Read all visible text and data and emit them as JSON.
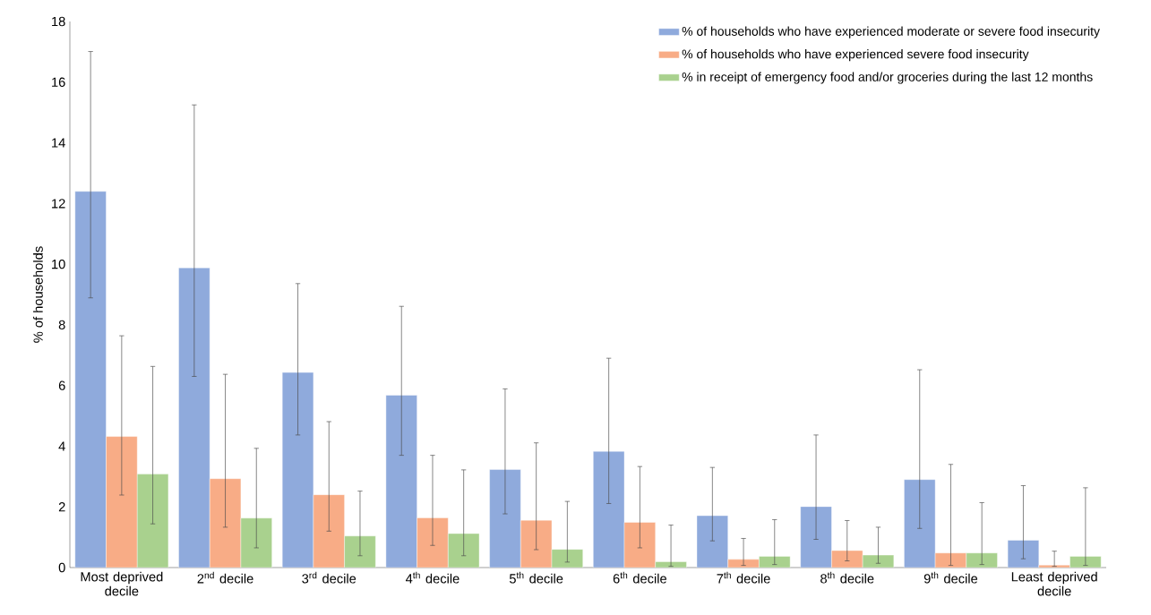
{
  "chart_data": {
    "type": "bar",
    "ylabel": "% of households",
    "categories": [
      "Most deprived decile",
      "2$^{nd}$ decile",
      "3$^{rd}$ decile",
      "4$^{th}$ decile",
      "5$^{th}$ decile",
      "6$^{th}$ decile",
      "7$^{th}$ decile",
      "8$^{th}$ decile",
      "9$^{th}$ decile",
      "Least deprived decile"
    ],
    "series": [
      {
        "name": "% of households who have experienced moderate or severe food insecurity",
        "color": "#8faadc",
        "values": [
          12.4,
          9.88,
          6.43,
          5.68,
          3.23,
          3.83,
          1.71,
          2.01,
          2.9,
          0.9
        ],
        "errors": [
          [
            8.89,
            17.01
          ],
          [
            6.3,
            15.25
          ],
          [
            4.37,
            9.36
          ],
          [
            3.7,
            8.61
          ],
          [
            1.77,
            5.89
          ],
          [
            2.11,
            6.9
          ],
          [
            0.88,
            3.3
          ],
          [
            0.93,
            4.37
          ],
          [
            1.29,
            6.52
          ],
          [
            0.29,
            2.7
          ]
        ]
      },
      {
        "name": "% of households who have experienced severe food insecurity",
        "color": "#f8ac86",
        "values": [
          4.32,
          2.93,
          2.4,
          1.64,
          1.56,
          1.49,
          0.27,
          0.56,
          0.48,
          0.08
        ],
        "errors": [
          [
            2.39,
            7.64
          ],
          [
            1.33,
            6.37
          ],
          [
            1.2,
            4.81
          ],
          [
            0.73,
            3.7
          ],
          [
            0.59,
            4.11
          ],
          [
            0.65,
            3.33
          ],
          [
            0.07,
            0.96
          ],
          [
            0.22,
            1.55
          ],
          [
            0.07,
            3.4
          ],
          [
            0.04,
            0.54
          ]
        ]
      },
      {
        "name": "% in receipt of emergency food and/or groceries during the last 12 months",
        "color": "#a9d18e",
        "values": [
          3.08,
          1.63,
          1.04,
          1.12,
          0.6,
          0.19,
          0.37,
          0.41,
          0.48,
          0.37
        ],
        "errors": [
          [
            1.44,
            6.63
          ],
          [
            0.65,
            3.93
          ],
          [
            0.39,
            2.52
          ],
          [
            0.39,
            3.22
          ],
          [
            0.18,
            2.18
          ],
          [
            0.04,
            1.4
          ],
          [
            0.1,
            1.58
          ],
          [
            0.14,
            1.33
          ],
          [
            0.1,
            2.14
          ],
          [
            0.07,
            2.63
          ]
        ]
      }
    ],
    "ylim": [
      0,
      18
    ],
    "yticks": [
      0,
      2,
      4,
      6,
      8,
      10,
      12,
      14,
      16,
      18
    ],
    "grid": false,
    "legend": "top right"
  }
}
